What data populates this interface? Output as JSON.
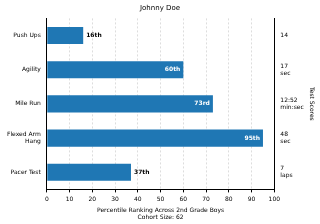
{
  "chart_data": {
    "type": "bar",
    "orientation": "horizontal",
    "title": "Johnny Doe",
    "categories": [
      "Push Ups",
      "Agility",
      "Mile Run",
      "Flexed Arm\nHang",
      "Pacer Test"
    ],
    "values": [
      16,
      60,
      73,
      95,
      37
    ],
    "value_labels": [
      "16th",
      "60th",
      "73rd",
      "95th",
      "37th"
    ],
    "data_labels": true,
    "color": "#1f77b4",
    "x_label": "Percentile Ranking Across 2nd Grade Boys\nCohort Size: 62",
    "y2_label": "Test Scores",
    "y2_categories": [
      "14",
      "17\nsec",
      "12:52\nmin:sec",
      "48\nsec",
      "7\nlaps"
    ],
    "xlim": [
      0,
      100
    ],
    "xticks": [
      0,
      10,
      20,
      30,
      40,
      50,
      60,
      70,
      80,
      90,
      100
    ],
    "grid": true
  }
}
